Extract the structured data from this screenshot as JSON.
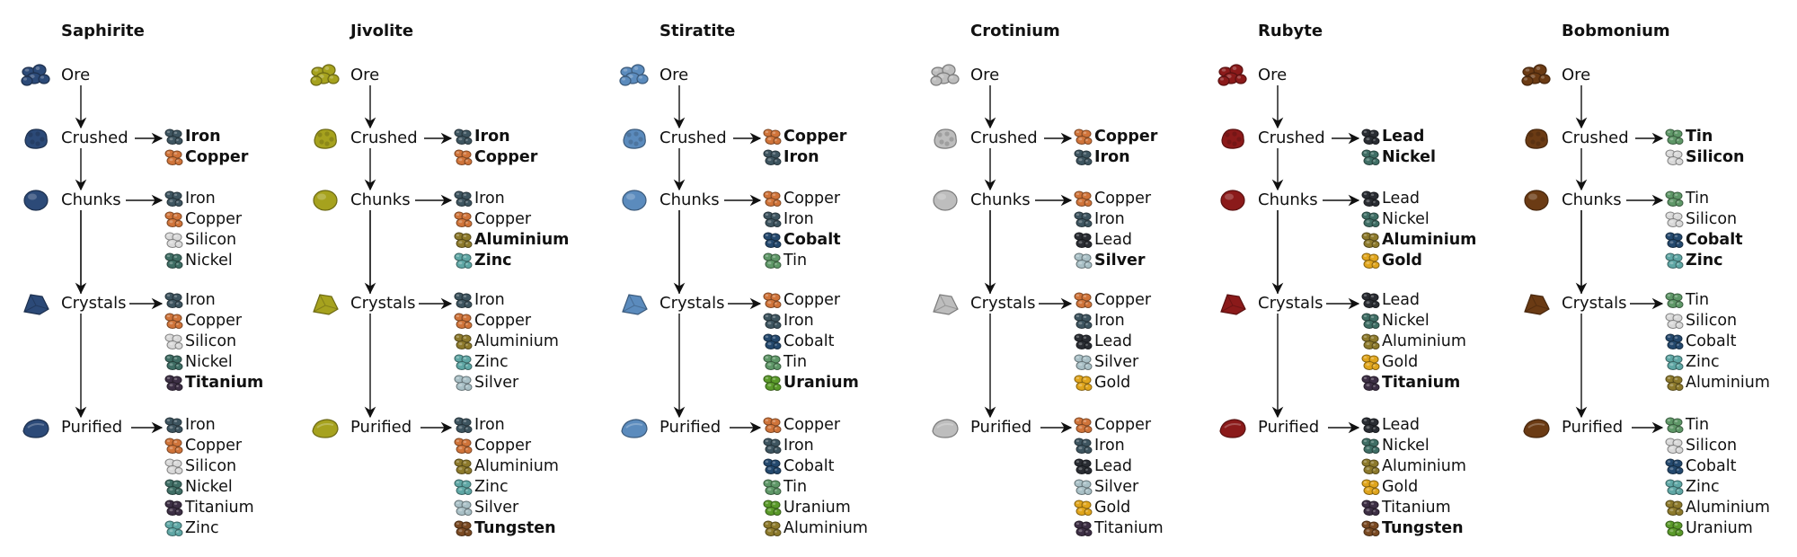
{
  "colors": {
    "ores": {
      "Saphirite": "#2c4a78",
      "Jivolite": "#a6a21e",
      "Stiratite": "#5b8bbd",
      "Crotinium": "#bdbdbd",
      "Rubyte": "#8b1a1a",
      "Bobmonium": "#6b3b14"
    },
    "materials": {
      "Iron": "#3e5560",
      "Copper": "#d0743a",
      "Silicon": "#d9d9d9",
      "Nickel": "#3f6e65",
      "Titanium": "#3d2f45",
      "Zinc": "#5fa7a5",
      "Aluminium": "#8d7a2c",
      "Silver": "#a9c0c6",
      "Tungsten": "#7a4a23",
      "Cobalt": "#24496e",
      "Tin": "#5f9868",
      "Uranium": "#5a9a2a",
      "Lead": "#2a2d33",
      "Gold": "#e0a51c"
    }
  },
  "ores": [
    {
      "name": "Saphirite",
      "stages": [
        {
          "label": "Ore",
          "icon": "saphirite-ore-icon",
          "outputs": []
        },
        {
          "label": "Crushed",
          "icon": "saphirite-crushed-icon",
          "outputs": [
            {
              "name": "Iron",
              "primary": true
            },
            {
              "name": "Copper",
              "primary": true
            }
          ]
        },
        {
          "label": "Chunks",
          "icon": "saphirite-chunks-icon",
          "outputs": [
            {
              "name": "Iron",
              "primary": false
            },
            {
              "name": "Copper",
              "primary": false
            },
            {
              "name": "Silicon",
              "primary": false
            },
            {
              "name": "Nickel",
              "primary": false
            }
          ]
        },
        {
          "label": "Crystals",
          "icon": "saphirite-crystals-icon",
          "outputs": [
            {
              "name": "Iron",
              "primary": false
            },
            {
              "name": "Copper",
              "primary": false
            },
            {
              "name": "Silicon",
              "primary": false
            },
            {
              "name": "Nickel",
              "primary": false
            },
            {
              "name": "Titanium",
              "primary": true
            }
          ]
        },
        {
          "label": "Purified",
          "icon": "saphirite-purified-icon",
          "outputs": [
            {
              "name": "Iron",
              "primary": false
            },
            {
              "name": "Copper",
              "primary": false
            },
            {
              "name": "Silicon",
              "primary": false
            },
            {
              "name": "Nickel",
              "primary": false
            },
            {
              "name": "Titanium",
              "primary": false
            },
            {
              "name": "Zinc",
              "primary": false
            }
          ]
        }
      ]
    },
    {
      "name": "Jivolite",
      "stages": [
        {
          "label": "Ore",
          "icon": "jivolite-ore-icon",
          "outputs": []
        },
        {
          "label": "Crushed",
          "icon": "jivolite-crushed-icon",
          "outputs": [
            {
              "name": "Iron",
              "primary": true
            },
            {
              "name": "Copper",
              "primary": true
            }
          ]
        },
        {
          "label": "Chunks",
          "icon": "jivolite-chunks-icon",
          "outputs": [
            {
              "name": "Iron",
              "primary": false
            },
            {
              "name": "Copper",
              "primary": false
            },
            {
              "name": "Aluminium",
              "primary": true
            },
            {
              "name": "Zinc",
              "primary": true
            }
          ]
        },
        {
          "label": "Crystals",
          "icon": "jivolite-crystals-icon",
          "outputs": [
            {
              "name": "Iron",
              "primary": false
            },
            {
              "name": "Copper",
              "primary": false
            },
            {
              "name": "Aluminium",
              "primary": false
            },
            {
              "name": "Zinc",
              "primary": false
            },
            {
              "name": "Silver",
              "primary": false
            }
          ]
        },
        {
          "label": "Purified",
          "icon": "jivolite-purified-icon",
          "outputs": [
            {
              "name": "Iron",
              "primary": false
            },
            {
              "name": "Copper",
              "primary": false
            },
            {
              "name": "Aluminium",
              "primary": false
            },
            {
              "name": "Zinc",
              "primary": false
            },
            {
              "name": "Silver",
              "primary": false
            },
            {
              "name": "Tungsten",
              "primary": true
            }
          ]
        }
      ]
    },
    {
      "name": "Stiratite",
      "stages": [
        {
          "label": "Ore",
          "icon": "stiratite-ore-icon",
          "outputs": []
        },
        {
          "label": "Crushed",
          "icon": "stiratite-crushed-icon",
          "outputs": [
            {
              "name": "Copper",
              "primary": true
            },
            {
              "name": "Iron",
              "primary": true
            }
          ]
        },
        {
          "label": "Chunks",
          "icon": "stiratite-chunks-icon",
          "outputs": [
            {
              "name": "Copper",
              "primary": false
            },
            {
              "name": "Iron",
              "primary": false
            },
            {
              "name": "Cobalt",
              "primary": true
            },
            {
              "name": "Tin",
              "primary": false
            }
          ]
        },
        {
          "label": "Crystals",
          "icon": "stiratite-crystals-icon",
          "outputs": [
            {
              "name": "Copper",
              "primary": false
            },
            {
              "name": "Iron",
              "primary": false
            },
            {
              "name": "Cobalt",
              "primary": false
            },
            {
              "name": "Tin",
              "primary": false
            },
            {
              "name": "Uranium",
              "primary": true
            }
          ]
        },
        {
          "label": "Purified",
          "icon": "stiratite-purified-icon",
          "outputs": [
            {
              "name": "Copper",
              "primary": false
            },
            {
              "name": "Iron",
              "primary": false
            },
            {
              "name": "Cobalt",
              "primary": false
            },
            {
              "name": "Tin",
              "primary": false
            },
            {
              "name": "Uranium",
              "primary": false
            },
            {
              "name": "Aluminium",
              "primary": false
            }
          ]
        }
      ]
    },
    {
      "name": "Crotinium",
      "stages": [
        {
          "label": "Ore",
          "icon": "crotinium-ore-icon",
          "outputs": []
        },
        {
          "label": "Crushed",
          "icon": "crotinium-crushed-icon",
          "outputs": [
            {
              "name": "Copper",
              "primary": true
            },
            {
              "name": "Iron",
              "primary": true
            }
          ]
        },
        {
          "label": "Chunks",
          "icon": "crotinium-chunks-icon",
          "outputs": [
            {
              "name": "Copper",
              "primary": false
            },
            {
              "name": "Iron",
              "primary": false
            },
            {
              "name": "Lead",
              "primary": false
            },
            {
              "name": "Silver",
              "primary": true
            }
          ]
        },
        {
          "label": "Crystals",
          "icon": "crotinium-crystals-icon",
          "outputs": [
            {
              "name": "Copper",
              "primary": false
            },
            {
              "name": "Iron",
              "primary": false
            },
            {
              "name": "Lead",
              "primary": false
            },
            {
              "name": "Silver",
              "primary": false
            },
            {
              "name": "Gold",
              "primary": false
            }
          ]
        },
        {
          "label": "Purified",
          "icon": "crotinium-purified-icon",
          "outputs": [
            {
              "name": "Copper",
              "primary": false
            },
            {
              "name": "Iron",
              "primary": false
            },
            {
              "name": "Lead",
              "primary": false
            },
            {
              "name": "Silver",
              "primary": false
            },
            {
              "name": "Gold",
              "primary": false
            },
            {
              "name": "Titanium",
              "primary": false
            }
          ]
        }
      ]
    },
    {
      "name": "Rubyte",
      "stages": [
        {
          "label": "Ore",
          "icon": "rubyte-ore-icon",
          "outputs": []
        },
        {
          "label": "Crushed",
          "icon": "rubyte-crushed-icon",
          "outputs": [
            {
              "name": "Lead",
              "primary": true
            },
            {
              "name": "Nickel",
              "primary": true
            }
          ]
        },
        {
          "label": "Chunks",
          "icon": "rubyte-chunks-icon",
          "outputs": [
            {
              "name": "Lead",
              "primary": false
            },
            {
              "name": "Nickel",
              "primary": false
            },
            {
              "name": "Aluminium",
              "primary": true
            },
            {
              "name": "Gold",
              "primary": true
            }
          ]
        },
        {
          "label": "Crystals",
          "icon": "rubyte-crystals-icon",
          "outputs": [
            {
              "name": "Lead",
              "primary": false
            },
            {
              "name": "Nickel",
              "primary": false
            },
            {
              "name": "Aluminium",
              "primary": false
            },
            {
              "name": "Gold",
              "primary": false
            },
            {
              "name": "Titanium",
              "primary": true
            }
          ]
        },
        {
          "label": "Purified",
          "icon": "rubyte-purified-icon",
          "outputs": [
            {
              "name": "Lead",
              "primary": false
            },
            {
              "name": "Nickel",
              "primary": false
            },
            {
              "name": "Aluminium",
              "primary": false
            },
            {
              "name": "Gold",
              "primary": false
            },
            {
              "name": "Titanium",
              "primary": false
            },
            {
              "name": "Tungsten",
              "primary": true
            }
          ]
        }
      ]
    },
    {
      "name": "Bobmonium",
      "stages": [
        {
          "label": "Ore",
          "icon": "bobmonium-ore-icon",
          "outputs": []
        },
        {
          "label": "Crushed",
          "icon": "bobmonium-crushed-icon",
          "outputs": [
            {
              "name": "Tin",
              "primary": true
            },
            {
              "name": "Silicon",
              "primary": true
            }
          ]
        },
        {
          "label": "Chunks",
          "icon": "bobmonium-chunks-icon",
          "outputs": [
            {
              "name": "Tin",
              "primary": false
            },
            {
              "name": "Silicon",
              "primary": false
            },
            {
              "name": "Cobalt",
              "primary": true
            },
            {
              "name": "Zinc",
              "primary": true
            }
          ]
        },
        {
          "label": "Crystals",
          "icon": "bobmonium-crystals-icon",
          "outputs": [
            {
              "name": "Tin",
              "primary": false
            },
            {
              "name": "Silicon",
              "primary": false
            },
            {
              "name": "Cobalt",
              "primary": false
            },
            {
              "name": "Zinc",
              "primary": false
            },
            {
              "name": "Aluminium",
              "primary": false
            }
          ]
        },
        {
          "label": "Purified",
          "icon": "bobmonium-purified-icon",
          "outputs": [
            {
              "name": "Tin",
              "primary": false
            },
            {
              "name": "Silicon",
              "primary": false
            },
            {
              "name": "Cobalt",
              "primary": false
            },
            {
              "name": "Zinc",
              "primary": false
            },
            {
              "name": "Aluminium",
              "primary": false
            },
            {
              "name": "Uranium",
              "primary": false
            }
          ]
        }
      ]
    }
  ]
}
